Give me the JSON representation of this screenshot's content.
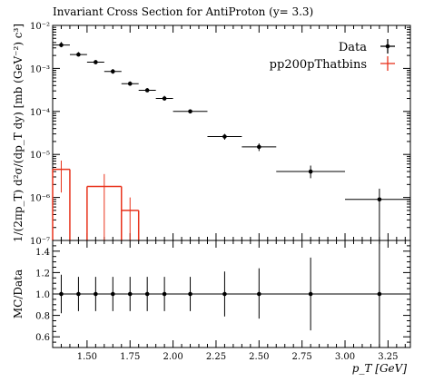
{
  "title": "Invariant Cross Section for AntiProton (y= 3.3)",
  "chart_data": [
    {
      "type": "line",
      "panel": "main",
      "title": "Invariant Cross Section for AntiProton (y= 3.3)",
      "ylabel": "1/(2πp_T) d²σ/(dp_T dy) [mb (GeV⁻²) c³]",
      "xlim": [
        1.3,
        3.38
      ],
      "ylim": [
        1e-07,
        0.01
      ],
      "yscale": "log",
      "ytick_labels": [
        "10⁻⁷",
        "10⁻⁶",
        "10⁻⁵",
        "10⁻⁴",
        "10⁻³",
        "10⁻²"
      ],
      "legend": {
        "position": "top-right",
        "entries": [
          "Data",
          "pp200pThatbins"
        ]
      },
      "series": [
        {
          "name": "Data",
          "color": "#000000",
          "points": [
            {
              "x": 1.35,
              "xlo": 1.3,
              "xhi": 1.4,
              "y": 0.0035,
              "ylo": 0.0031,
              "yhi": 0.0041
            },
            {
              "x": 1.45,
              "xlo": 1.4,
              "xhi": 1.5,
              "y": 0.0021,
              "ylo": 0.0019,
              "yhi": 0.0024
            },
            {
              "x": 1.55,
              "xlo": 1.5,
              "xhi": 1.6,
              "y": 0.0014,
              "ylo": 0.00125,
              "yhi": 0.00155
            },
            {
              "x": 1.65,
              "xlo": 1.6,
              "xhi": 1.7,
              "y": 0.00085,
              "ylo": 0.00075,
              "yhi": 0.00097
            },
            {
              "x": 1.75,
              "xlo": 1.7,
              "xhi": 1.8,
              "y": 0.00044,
              "ylo": 0.0004,
              "yhi": 0.0005
            },
            {
              "x": 1.85,
              "xlo": 1.8,
              "xhi": 1.9,
              "y": 0.00031,
              "ylo": 0.00028,
              "yhi": 0.00035
            },
            {
              "x": 1.95,
              "xlo": 1.9,
              "xhi": 2.0,
              "y": 0.0002,
              "ylo": 0.00018,
              "yhi": 0.00023
            },
            {
              "x": 2.1,
              "xlo": 2.0,
              "xhi": 2.2,
              "y": 0.0001,
              "ylo": 9e-05,
              "yhi": 0.000112
            },
            {
              "x": 2.3,
              "xlo": 2.2,
              "xhi": 2.4,
              "y": 2.6e-05,
              "ylo": 2.2e-05,
              "yhi": 3e-05
            },
            {
              "x": 2.5,
              "xlo": 2.4,
              "xhi": 2.6,
              "y": 1.5e-05,
              "ylo": 1.2e-05,
              "yhi": 1.8e-05
            },
            {
              "x": 2.8,
              "xlo": 2.6,
              "xhi": 3.0,
              "y": 4e-06,
              "ylo": 2.8e-06,
              "yhi": 5.5e-06
            },
            {
              "x": 3.2,
              "xlo": 3.0,
              "xhi": 3.4,
              "y": 9e-07,
              "ylo": 1e-07,
              "yhi": 1.6e-06
            }
          ]
        },
        {
          "name": "pp200pThatbins",
          "color": "#e8331c",
          "bins": [
            {
              "xlo": 1.3,
              "xhi": 1.4,
              "y": 4.5e-06,
              "ylo": 1.3e-06,
              "yhi": 7.2e-06
            },
            {
              "xlo": 1.5,
              "xhi": 1.7,
              "y": 1.8e-06,
              "ylo": 1e-07,
              "yhi": 3.5e-06
            },
            {
              "xlo": 1.7,
              "xhi": 1.8,
              "y": 5e-07,
              "ylo": 1e-07,
              "yhi": 1e-06
            }
          ]
        }
      ]
    },
    {
      "type": "line",
      "panel": "ratio",
      "xlabel": "p_T [GeV]",
      "ylabel": "MC/Data",
      "xlim": [
        1.3,
        3.38
      ],
      "ylim": [
        0.5,
        1.5
      ],
      "xticks": [
        1.5,
        1.75,
        2.0,
        2.25,
        2.5,
        2.75,
        3.0,
        3.25
      ],
      "xtick_labels": [
        "1.50",
        "1.75",
        "2.00",
        "2.25",
        "2.50",
        "2.75",
        "3.00",
        "3.25"
      ],
      "yticks": [
        0.6,
        0.8,
        1.0,
        1.2,
        1.4
      ],
      "ytick_labels": [
        "0.6",
        "0.8",
        "1.0",
        "1.2",
        "1.4"
      ],
      "series": [
        {
          "name": "Data",
          "color": "#000000",
          "points": [
            {
              "x": 1.35,
              "xlo": 1.3,
              "xhi": 1.4,
              "y": 1.0,
              "ylo": 0.82,
              "yhi": 1.18
            },
            {
              "x": 1.45,
              "xlo": 1.4,
              "xhi": 1.5,
              "y": 1.0,
              "ylo": 0.84,
              "yhi": 1.16
            },
            {
              "x": 1.55,
              "xlo": 1.5,
              "xhi": 1.6,
              "y": 1.0,
              "ylo": 0.84,
              "yhi": 1.16
            },
            {
              "x": 1.65,
              "xlo": 1.6,
              "xhi": 1.7,
              "y": 1.0,
              "ylo": 0.84,
              "yhi": 1.16
            },
            {
              "x": 1.75,
              "xlo": 1.7,
              "xhi": 1.8,
              "y": 1.0,
              "ylo": 0.84,
              "yhi": 1.16
            },
            {
              "x": 1.85,
              "xlo": 1.8,
              "xhi": 1.9,
              "y": 1.0,
              "ylo": 0.84,
              "yhi": 1.16
            },
            {
              "x": 1.95,
              "xlo": 1.9,
              "xhi": 2.0,
              "y": 1.0,
              "ylo": 0.84,
              "yhi": 1.16
            },
            {
              "x": 2.1,
              "xlo": 2.0,
              "xhi": 2.2,
              "y": 1.0,
              "ylo": 0.84,
              "yhi": 1.16
            },
            {
              "x": 2.3,
              "xlo": 2.2,
              "xhi": 2.4,
              "y": 1.0,
              "ylo": 0.79,
              "yhi": 1.21
            },
            {
              "x": 2.5,
              "xlo": 2.4,
              "xhi": 2.6,
              "y": 1.0,
              "ylo": 0.77,
              "yhi": 1.24
            },
            {
              "x": 2.8,
              "xlo": 2.6,
              "xhi": 3.0,
              "y": 1.0,
              "ylo": 0.66,
              "yhi": 1.34
            },
            {
              "x": 3.2,
              "xlo": 3.0,
              "xhi": 3.4,
              "y": 1.0,
              "ylo": 0.5,
              "yhi": 1.5
            }
          ]
        }
      ]
    }
  ]
}
